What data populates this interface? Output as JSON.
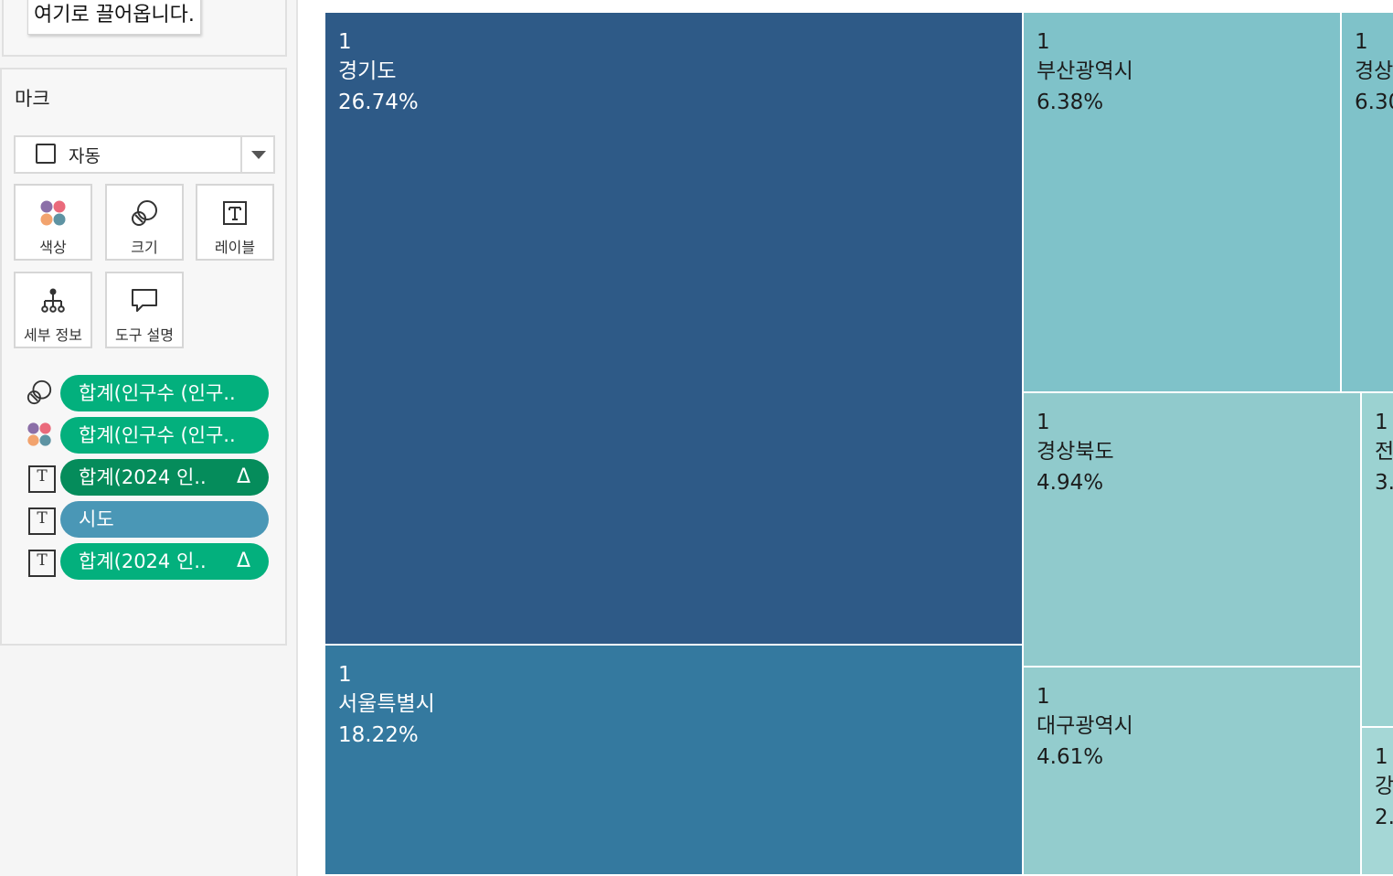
{
  "drop_tip": "여기로 끌어옵니다.",
  "marks": {
    "title": "마크",
    "mark_type": "자동",
    "buttons": [
      {
        "key": "color",
        "label": "색상",
        "icon": "color-dots-icon"
      },
      {
        "key": "size",
        "label": "크기",
        "icon": "size-circles-icon"
      },
      {
        "key": "label",
        "label": "레이블",
        "icon": "text-label-icon"
      },
      {
        "key": "detail",
        "label": "세부 정보",
        "icon": "detail-tree-icon"
      },
      {
        "key": "tooltip",
        "label": "도구 설명",
        "icon": "tooltip-bubble-icon"
      }
    ],
    "pills": [
      {
        "icon": "size-circles-icon",
        "text": "합계(인구수 (인구..",
        "delta": "",
        "color": "#03b07d"
      },
      {
        "icon": "color-dots-icon",
        "text": "합계(인구수 (인구..",
        "delta": "",
        "color": "#03b07d"
      },
      {
        "icon": "text-label-icon",
        "text": "합계(2024 인..",
        "delta": "Δ",
        "color": "#058c5b"
      },
      {
        "icon": "text-label-icon",
        "text": "시도",
        "delta": "",
        "color": "#4a97b6"
      },
      {
        "icon": "text-label-icon",
        "text": "합계(2024 인..",
        "delta": "Δ",
        "color": "#03b07d"
      }
    ]
  },
  "treemap": {
    "tiles": [
      {
        "rank": "1",
        "name": "경기도",
        "pct": "26.74%",
        "bg": "#2e5a87",
        "fg": "#ffffff"
      },
      {
        "rank": "1",
        "name": "서울특별시",
        "pct": "18.22%",
        "bg": "#34799f",
        "fg": "#ffffff"
      },
      {
        "rank": "1",
        "name": "부산광역시",
        "pct": "6.38%",
        "bg": "#7fc2c9",
        "fg": "#1c1c1c"
      },
      {
        "rank": "1",
        "name": "경상",
        "pct": "6.30",
        "bg": "#7fc2c9",
        "fg": "#1c1c1c"
      },
      {
        "rank": "1",
        "name": "경상북도",
        "pct": "4.94%",
        "bg": "#90cacc",
        "fg": "#1c1c1c"
      },
      {
        "rank": "1",
        "name": "대구광역시",
        "pct": "4.61%",
        "bg": "#93cccd",
        "fg": "#1c1c1c"
      },
      {
        "rank": "1",
        "name": "전",
        "pct": "3.",
        "bg": "#9bd2d1",
        "fg": "#1c1c1c"
      },
      {
        "rank": "1",
        "name": "강",
        "pct": "2.",
        "bg": "#a5d7d6",
        "fg": "#1c1c1c"
      }
    ]
  }
}
